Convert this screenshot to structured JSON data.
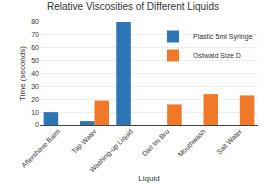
{
  "chart_data": {
    "type": "bar",
    "title": "Relative Viscosities of Different Liquids",
    "xlabel": "Liquid",
    "ylabel": "Time (seconds)",
    "categories": [
      "Aftershave Balm",
      "Tap Water",
      "Washing-up Liquid",
      "Diet Im Bru",
      "Mouthwash",
      "Salt Water"
    ],
    "series": [
      {
        "name": "Plastic 5ml Syringe",
        "color": "#2e75b6",
        "values": [
          10,
          3,
          80,
          0,
          0,
          0
        ]
      },
      {
        "name": "Ostwald Size D",
        "color": "#f07828",
        "values": [
          0,
          19,
          0,
          16,
          24,
          23
        ]
      }
    ],
    "ylim": [
      0,
      80
    ],
    "yticks": [
      0,
      10,
      20,
      30,
      40,
      50,
      60,
      70,
      80
    ],
    "grid": true,
    "legend": "upper right"
  }
}
